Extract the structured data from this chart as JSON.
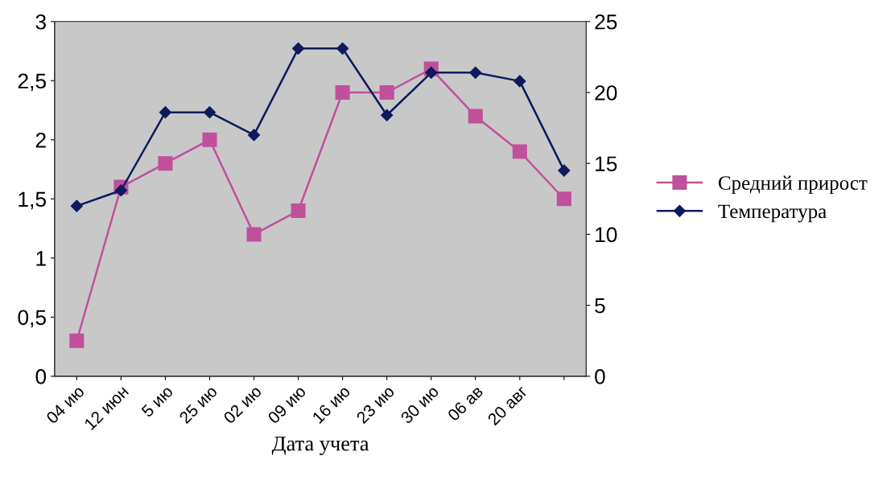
{
  "chart_data": {
    "type": "line",
    "xlabel": "Дата учета",
    "categories": [
      "04 ию",
      "12 июн",
      "5 ию",
      "25 ию",
      "02 ию",
      "09 ию",
      "16 ию",
      "23 ию",
      "30 ию",
      "06 ав",
      "20 авг",
      null
    ],
    "series": [
      {
        "name": "Средний прирост",
        "color": "#c0509c",
        "marker": "square",
        "values": [
          0.3,
          1.6,
          1.8,
          2.0,
          1.2,
          1.4,
          2.4,
          2.4,
          2.6,
          2.2,
          1.9,
          1.5
        ]
      },
      {
        "name": "Температура",
        "color": "#0d1a5e",
        "marker": "diamond",
        "axis": "y2",
        "values": [
          12.0,
          13.1,
          18.6,
          18.6,
          17.0,
          23.1,
          23.1,
          18.4,
          21.4,
          21.4,
          20.8,
          14.5
        ]
      }
    ],
    "ylim": [
      0,
      3
    ],
    "yticks": [
      0,
      {
        "value": 0.5,
        "label": "0,5"
      },
      1,
      {
        "value": 1.5,
        "label": "1,5"
      },
      2,
      {
        "value": 2.5,
        "label": "2,5"
      },
      3
    ],
    "y2lim": [
      0,
      25
    ],
    "y2ticks": [
      0,
      5,
      10,
      15,
      20,
      25
    ],
    "grid": false,
    "legend": "right",
    "line_style": "solid"
  }
}
